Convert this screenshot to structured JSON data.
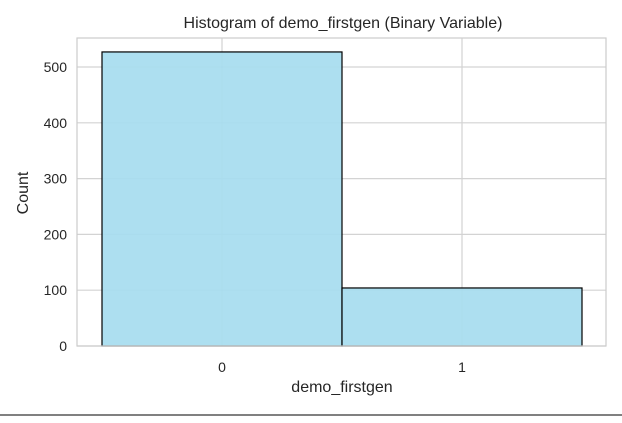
{
  "chart_data": {
    "type": "bar",
    "title": "Histogram of demo_firstgen (Binary Variable)",
    "xlabel": "demo_firstgen",
    "ylabel": "Count",
    "categories": [
      "0",
      "1"
    ],
    "values": [
      527,
      104
    ],
    "ylim": [
      0,
      552
    ],
    "yticks": [
      0,
      100,
      200,
      300,
      400,
      500
    ],
    "grid": true,
    "legend": "none",
    "bar_color": "#a6dcef",
    "bar_edge_color": "#000000",
    "grid_color": "#d3d3d3"
  }
}
